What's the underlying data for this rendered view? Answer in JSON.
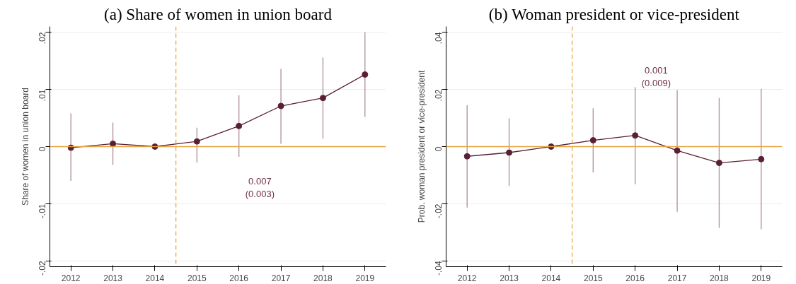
{
  "chart_data": [
    {
      "type": "line",
      "title": "(a) Share of women in union board",
      "ylabel": "Share of women in union board",
      "x": [
        2012,
        2013,
        2014,
        2015,
        2016,
        2017,
        2018,
        2019
      ],
      "xlim": [
        2011.5,
        2019.5
      ],
      "xticks": [
        2012,
        2013,
        2014,
        2015,
        2016,
        2017,
        2018,
        2019
      ],
      "ylim": [
        -0.021,
        0.021
      ],
      "yticks": [
        {
          "value": -0.02,
          "label": "-.02"
        },
        {
          "value": -0.01,
          "label": "-.01"
        },
        0,
        {
          "value": 0.01,
          "label": ".01"
        },
        {
          "value": 0.02,
          "label": ".02"
        }
      ],
      "grid": "y",
      "marker": "circle",
      "line_style": "solid",
      "series": [
        {
          "color": "#5b1f35",
          "values": [
            -0.0002,
            0.0005,
            0.0,
            0.0009,
            0.0036,
            0.0071,
            0.0085,
            0.0126
          ],
          "errors": [
            [
              -0.006,
              0.0058
            ],
            [
              -0.0032,
              0.0042
            ],
            null,
            [
              -0.0028,
              0.0033
            ],
            [
              -0.0018,
              0.009
            ],
            [
              0.0005,
              0.0136
            ],
            [
              0.0014,
              0.0156
            ],
            [
              0.0052,
              0.02
            ]
          ]
        }
      ],
      "ref_lines": [
        {
          "axis": "y",
          "value": 0,
          "color": "#e8a33d",
          "line_style": "solid"
        },
        {
          "axis": "x",
          "value": 2014.5,
          "color": "#e8a33d",
          "line_style": "dashed"
        }
      ],
      "annotations": [
        "0.007\n(0.003)"
      ]
    },
    {
      "type": "line",
      "title": "(b) Woman president or vice-president",
      "ylabel": "Prob. woman president or vice-president",
      "x": [
        2012,
        2013,
        2014,
        2015,
        2016,
        2017,
        2018,
        2019
      ],
      "xlim": [
        2011.5,
        2019.5
      ],
      "xticks": [
        2012,
        2013,
        2014,
        2015,
        2016,
        2017,
        2018,
        2019
      ],
      "ylim": [
        -0.042,
        0.042
      ],
      "yticks": [
        {
          "value": -0.04,
          "label": "-.04"
        },
        {
          "value": -0.02,
          "label": "-.02"
        },
        0,
        {
          "value": 0.02,
          "label": ".02"
        },
        {
          "value": 0.04,
          "label": ".04"
        }
      ],
      "grid": "y",
      "marker": "circle",
      "line_style": "solid",
      "series": [
        {
          "color": "#5b1f35",
          "values": [
            -0.0034,
            -0.0021,
            0.0,
            0.0022,
            0.0039,
            -0.0014,
            -0.0057,
            -0.0044
          ],
          "errors": [
            [
              -0.0213,
              0.0145
            ],
            [
              -0.0138,
              0.0099
            ],
            null,
            [
              -0.009,
              0.0134
            ],
            [
              -0.0132,
              0.0208
            ],
            [
              -0.0228,
              0.0197
            ],
            [
              -0.0284,
              0.017
            ],
            [
              -0.0289,
              0.0202
            ]
          ]
        }
      ],
      "ref_lines": [
        {
          "axis": "y",
          "value": 0,
          "color": "#e8a33d",
          "line_style": "solid"
        },
        {
          "axis": "x",
          "value": 2014.5,
          "color": "#e8a33d",
          "line_style": "dashed"
        }
      ],
      "annotations": [
        "0.001\n(0.009)"
      ]
    }
  ]
}
